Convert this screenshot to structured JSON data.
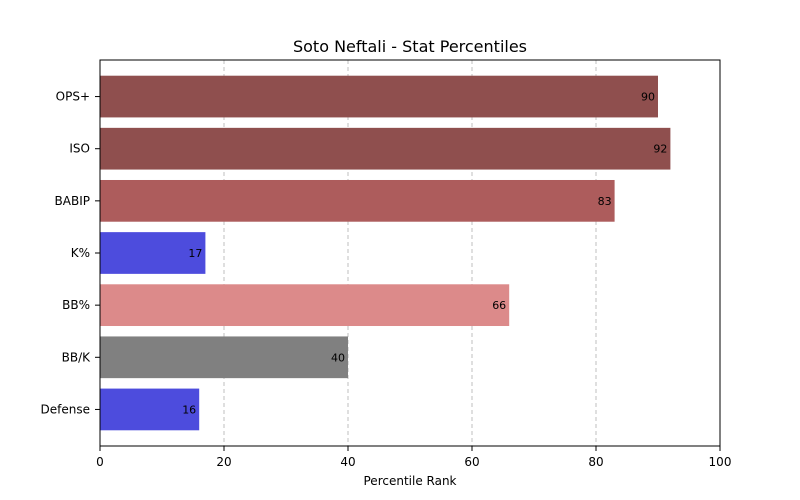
{
  "chart_data": {
    "type": "bar",
    "orientation": "horizontal",
    "title": "Soto Neftali - Stat Percentiles",
    "xlabel": "Percentile Rank",
    "ylabel": "",
    "xlim": [
      0,
      100
    ],
    "xticks": [
      0,
      20,
      40,
      60,
      80,
      100
    ],
    "grid": "x-dashed",
    "categories": [
      "OPS+",
      "ISO",
      "BABIP",
      "K%",
      "BB%",
      "BB/K",
      "Defense"
    ],
    "values": [
      90,
      92,
      83,
      17,
      66,
      40,
      16
    ],
    "colors": [
      "#8f4f4e",
      "#8f4f4e",
      "#ad5c5c",
      "#4d4cdd",
      "#dc8a8a",
      "#808080",
      "#4d4cdd"
    ]
  }
}
